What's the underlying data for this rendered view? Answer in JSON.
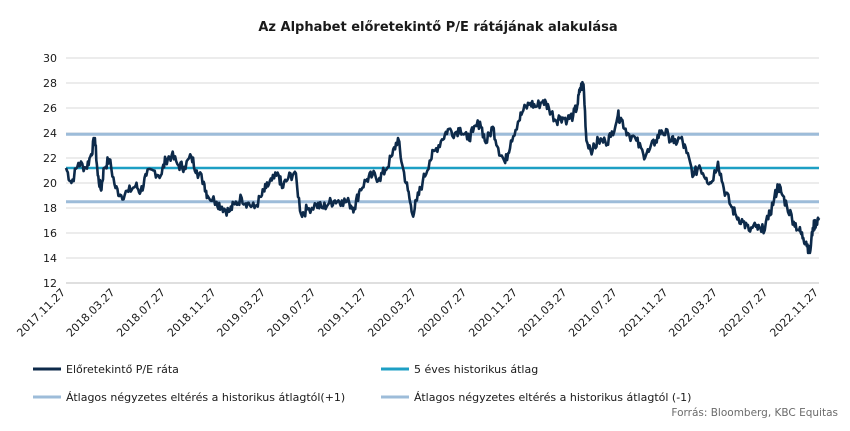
{
  "chart_data": {
    "type": "line",
    "title": "Az Alphabet előretekintő P/E rátájának alakulása",
    "source": "Forrás: Bloomberg, KBC Equitas",
    "ylim": [
      12,
      30
    ],
    "yticks": [
      12,
      14,
      16,
      18,
      20,
      22,
      24,
      26,
      28,
      30
    ],
    "xlim": [
      "2017-11-27",
      "2022-11-27"
    ],
    "xticks": [
      "2017.11.27",
      "2018.03.27",
      "2018.07.27",
      "2018.11.27",
      "2019.03.27",
      "2019.07.27",
      "2019.11.27",
      "2020.03.27",
      "2020.07.27",
      "2020.11.27",
      "2021.03.27",
      "2021.07.27",
      "2021.11.27",
      "2022.03.27",
      "2022.07.27",
      "2022.11.27"
    ],
    "grid": "horizontal",
    "legend_position": "bottom",
    "colors": {
      "pe": "#0d2a4a",
      "avg": "#1d9fc4",
      "sd": "#9dbcd9",
      "grid": "#d9d9d9",
      "text": "#1a1a1a",
      "source": "#6b6b6b"
    },
    "series": [
      {
        "name": "Előretekintő P/E ráta",
        "kind": "line",
        "points": [
          [
            "2017-11-27",
            21.2
          ],
          [
            "2017-12-10",
            20.0
          ],
          [
            "2017-12-27",
            21.6
          ],
          [
            "2018-01-15",
            21.2
          ],
          [
            "2018-01-27",
            22.3
          ],
          [
            "2018-02-05",
            23.6
          ],
          [
            "2018-02-12",
            20.6
          ],
          [
            "2018-02-20",
            19.4
          ],
          [
            "2018-02-27",
            21.2
          ],
          [
            "2018-03-12",
            21.9
          ],
          [
            "2018-03-27",
            19.6
          ],
          [
            "2018-04-10",
            19.0
          ],
          [
            "2018-04-27",
            19.3
          ],
          [
            "2018-05-15",
            19.8
          ],
          [
            "2018-05-27",
            19.3
          ],
          [
            "2018-06-10",
            20.6
          ],
          [
            "2018-06-27",
            21.0
          ],
          [
            "2018-07-15",
            20.6
          ],
          [
            "2018-07-27",
            21.9
          ],
          [
            "2018-08-10",
            22.2
          ],
          [
            "2018-08-27",
            21.4
          ],
          [
            "2018-09-10",
            21.3
          ],
          [
            "2018-09-27",
            22.1
          ],
          [
            "2018-10-10",
            21.0
          ],
          [
            "2018-10-27",
            20.1
          ],
          [
            "2018-11-05",
            19.0
          ],
          [
            "2018-11-27",
            18.5
          ],
          [
            "2018-12-10",
            18.1
          ],
          [
            "2018-12-27",
            17.7
          ],
          [
            "2019-01-10",
            18.3
          ],
          [
            "2019-01-27",
            18.8
          ],
          [
            "2019-02-10",
            18.4
          ],
          [
            "2019-02-27",
            18.0
          ],
          [
            "2019-03-15",
            18.9
          ],
          [
            "2019-03-27",
            19.6
          ],
          [
            "2019-04-10",
            20.2
          ],
          [
            "2019-04-27",
            20.6
          ],
          [
            "2019-05-05",
            19.6
          ],
          [
            "2019-05-20",
            20.4
          ],
          [
            "2019-06-05",
            20.9
          ],
          [
            "2019-06-20",
            17.5
          ],
          [
            "2019-07-05",
            17.9
          ],
          [
            "2019-07-27",
            18.3
          ],
          [
            "2019-08-10",
            18.0
          ],
          [
            "2019-08-27",
            18.4
          ],
          [
            "2019-09-10",
            18.6
          ],
          [
            "2019-09-27",
            18.6
          ],
          [
            "2019-10-15",
            18.4
          ],
          [
            "2019-10-27",
            18.0
          ],
          [
            "2019-11-10",
            19.5
          ],
          [
            "2019-11-27",
            20.3
          ],
          [
            "2019-12-10",
            20.6
          ],
          [
            "2019-12-27",
            20.4
          ],
          [
            "2020-01-10",
            21.0
          ],
          [
            "2020-01-27",
            22.2
          ],
          [
            "2020-02-10",
            23.6
          ],
          [
            "2020-02-20",
            21.5
          ],
          [
            "2020-03-05",
            19.4
          ],
          [
            "2020-03-16",
            17.5
          ],
          [
            "2020-03-27",
            18.6
          ],
          [
            "2020-04-10",
            20.1
          ],
          [
            "2020-04-27",
            21.8
          ],
          [
            "2020-05-10",
            22.6
          ],
          [
            "2020-05-27",
            23.5
          ],
          [
            "2020-06-10",
            24.3
          ],
          [
            "2020-06-27",
            24.0
          ],
          [
            "2020-07-10",
            24.4
          ],
          [
            "2020-07-27",
            23.5
          ],
          [
            "2020-08-10",
            24.1
          ],
          [
            "2020-08-27",
            24.9
          ],
          [
            "2020-09-10",
            23.2
          ],
          [
            "2020-09-27",
            24.5
          ],
          [
            "2020-10-10",
            22.8
          ],
          [
            "2020-10-27",
            21.6
          ],
          [
            "2020-11-10",
            23.4
          ],
          [
            "2020-11-27",
            24.9
          ],
          [
            "2020-12-10",
            25.8
          ],
          [
            "2020-12-27",
            26.4
          ],
          [
            "2021-01-10",
            26.1
          ],
          [
            "2021-01-27",
            26.6
          ],
          [
            "2021-02-10",
            26.0
          ],
          [
            "2021-02-27",
            25.0
          ],
          [
            "2021-03-10",
            25.3
          ],
          [
            "2021-03-27",
            25.1
          ],
          [
            "2021-04-10",
            25.4
          ],
          [
            "2021-04-20",
            26.2
          ],
          [
            "2021-04-27",
            27.6
          ],
          [
            "2021-05-05",
            27.9
          ],
          [
            "2021-05-12",
            23.4
          ],
          [
            "2021-05-27",
            22.6
          ],
          [
            "2021-06-10",
            23.4
          ],
          [
            "2021-06-27",
            23.3
          ],
          [
            "2021-07-10",
            23.7
          ],
          [
            "2021-07-27",
            25.4
          ],
          [
            "2021-08-05",
            25.1
          ],
          [
            "2021-08-20",
            24.0
          ],
          [
            "2021-09-10",
            23.4
          ],
          [
            "2021-09-27",
            22.3
          ],
          [
            "2021-10-10",
            22.5
          ],
          [
            "2021-10-27",
            23.4
          ],
          [
            "2021-11-10",
            24.2
          ],
          [
            "2021-11-27",
            23.8
          ],
          [
            "2021-12-10",
            23.2
          ],
          [
            "2021-12-27",
            23.6
          ],
          [
            "2022-01-10",
            22.4
          ],
          [
            "2022-01-27",
            20.6
          ],
          [
            "2022-02-10",
            21.4
          ],
          [
            "2022-02-27",
            20.4
          ],
          [
            "2022-03-10",
            20.0
          ],
          [
            "2022-03-27",
            21.7
          ],
          [
            "2022-04-10",
            19.6
          ],
          [
            "2022-04-27",
            18.2
          ],
          [
            "2022-05-10",
            17.4
          ],
          [
            "2022-05-27",
            16.9
          ],
          [
            "2022-06-10",
            16.2
          ],
          [
            "2022-06-27",
            16.5
          ],
          [
            "2022-07-10",
            16.1
          ],
          [
            "2022-07-27",
            17.1
          ],
          [
            "2022-08-10",
            18.7
          ],
          [
            "2022-08-20",
            19.8
          ],
          [
            "2022-08-27",
            19.3
          ],
          [
            "2022-09-10",
            18.2
          ],
          [
            "2022-09-27",
            16.9
          ],
          [
            "2022-10-10",
            16.2
          ],
          [
            "2022-10-20",
            15.6
          ],
          [
            "2022-10-27",
            15.3
          ],
          [
            "2022-11-05",
            14.4
          ],
          [
            "2022-11-12",
            16.4
          ],
          [
            "2022-11-20",
            16.9
          ],
          [
            "2022-11-27",
            17.2
          ]
        ]
      },
      {
        "name": "5 éves historikus átlag",
        "kind": "hline",
        "value": 21.2
      },
      {
        "name": "Átlagos négyzetes eltérés a historikus átlagtól(+1)",
        "kind": "hline",
        "value": 23.9
      },
      {
        "name": "Átlagos négyzetes eltérés a historikus átlagtól (-1)",
        "kind": "hline",
        "value": 18.5
      }
    ]
  }
}
